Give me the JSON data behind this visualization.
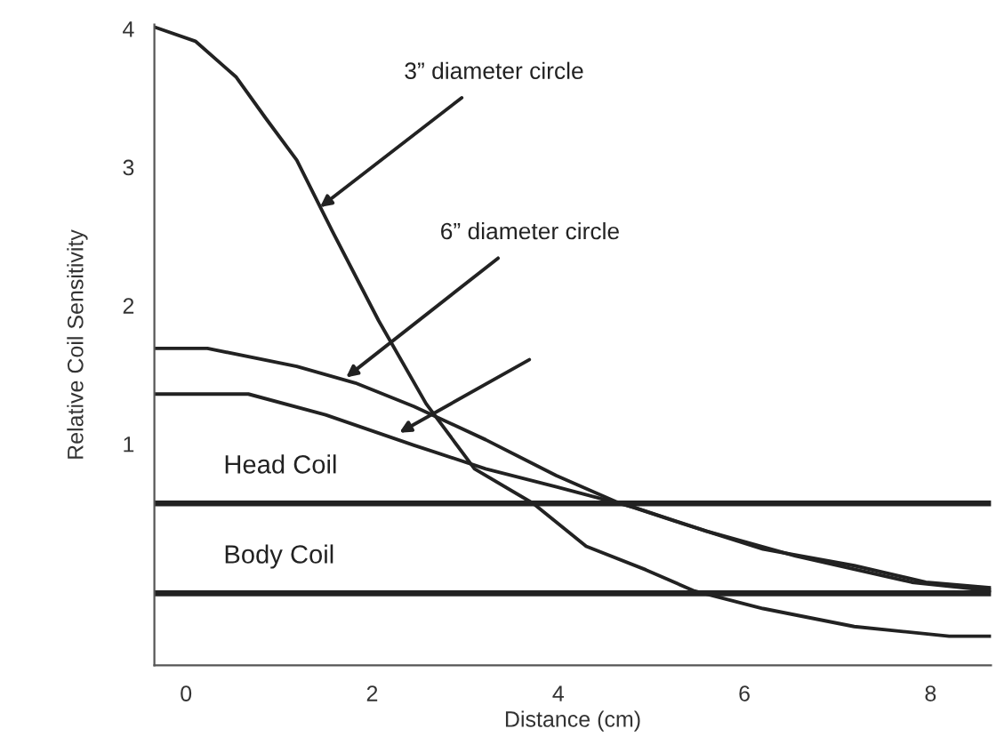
{
  "chart_data": {
    "type": "line",
    "xlabel": "Distance (cm)",
    "ylabel": "Relative Coil Sensitivity",
    "xlim": [
      -0.34,
      8.65
    ],
    "ylim": [
      -0.6,
      4.03
    ],
    "xticks": [
      0,
      2,
      4,
      6,
      8
    ],
    "yticks": [
      1,
      2,
      3,
      4
    ],
    "grid": false,
    "legend": false,
    "marker": "none",
    "line_style": "solid",
    "series": [
      {
        "color": "#222222",
        "x": [
          -0.33,
          0.1,
          0.54,
          0.86,
          1.19,
          1.57,
          2.07,
          2.58,
          3.1,
          3.73,
          4.3,
          4.94,
          5.45,
          6.2,
          7.18,
          8.2,
          8.65
        ],
        "values": [
          4.01,
          3.91,
          3.65,
          3.35,
          3.05,
          2.54,
          1.89,
          1.29,
          0.82,
          0.57,
          0.26,
          0.09,
          -0.06,
          -0.19,
          -0.32,
          -0.39,
          -0.39
        ]
      },
      {
        "color": "#222222",
        "x": [
          -0.33,
          0.23,
          1.19,
          1.82,
          2.45,
          3.22,
          3.98,
          4.63,
          5.26,
          6.2,
          7.18,
          7.95,
          8.65
        ],
        "values": [
          1.69,
          1.69,
          1.56,
          1.44,
          1.27,
          1.03,
          0.77,
          0.58,
          0.44,
          0.24,
          0.12,
          0.0,
          -0.04
        ]
      },
      {
        "color": "#222222",
        "x": [
          -0.33,
          0.67,
          1.5,
          2.45,
          3.22,
          3.98,
          4.82,
          5.59,
          6.55,
          7.8,
          8.65
        ],
        "values": [
          1.36,
          1.36,
          1.21,
          0.99,
          0.82,
          0.69,
          0.54,
          0.37,
          0.19,
          0.0,
          -0.06
        ]
      },
      {
        "name": "Head Coil",
        "color": "#222222",
        "x": [
          -0.34,
          8.65
        ],
        "values": [
          0.57,
          0.57
        ]
      },
      {
        "name": "Body Coil",
        "color": "#222222",
        "x": [
          -0.34,
          8.65
        ],
        "values": [
          -0.08,
          -0.08
        ]
      }
    ],
    "annotations": [
      {
        "text": "3” diameter circle",
        "x": 1.44,
        "y": 2.71
      },
      {
        "text": "6” diameter circle",
        "x": 1.72,
        "y": 1.48
      }
    ]
  }
}
